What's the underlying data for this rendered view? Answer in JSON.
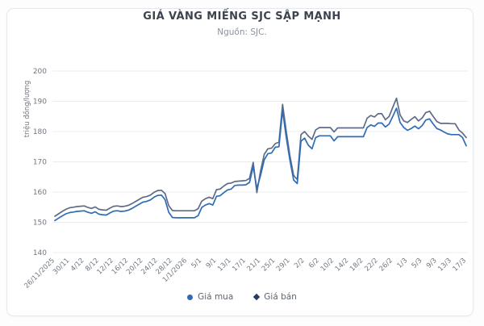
{
  "title": "GIÁ VÀNG MIẾNG SJC SẬP MẠNH",
  "subtitle": "Nguồn: SJC.",
  "colors": {
    "buy_line": "#2e6cb5",
    "sell_line": "#5f6c87",
    "sell_marker": "#2c3c5e",
    "grid": "#e9ecef",
    "axis_text": "#6f7680"
  },
  "chart_data": {
    "type": "line",
    "title": "GIÁ VÀNG MIẾNG SJC SẬP MẠNH",
    "subtitle": "Nguồn: SJC.",
    "xlabel": "",
    "ylabel": "triệu đồng/lượng",
    "ylim": [
      140,
      200
    ],
    "yticks": [
      140,
      150,
      160,
      170,
      180,
      190,
      200
    ],
    "grid": true,
    "legend_position": "bottom",
    "tick_interval": 4,
    "tick_labels": [
      "26/11/2025",
      "30/11",
      "4/12",
      "8/12",
      "12/12",
      "16/12",
      "20/12",
      "24/12",
      "28/12",
      "1/1/2026",
      "5/1",
      "9/1",
      "13/1",
      "17/1",
      "21/1",
      "25/1",
      "29/1",
      "2/2",
      "6/2",
      "10/2",
      "14/2",
      "18/2",
      "22/2",
      "26/2",
      "1/3",
      "5/3",
      "9/3",
      "13/3",
      "17/3"
    ],
    "series": [
      {
        "name": "Giá mua",
        "color": "#2e6cb5",
        "marker": "circle",
        "values": [
          150.6,
          151.4,
          152.1,
          152.8,
          153.2,
          153.4,
          153.6,
          153.7,
          153.8,
          153.3,
          153.0,
          153.5,
          152.7,
          152.5,
          152.4,
          153.1,
          153.7,
          153.8,
          153.6,
          153.7,
          154.0,
          154.6,
          155.3,
          156.0,
          156.7,
          156.9,
          157.4,
          158.3,
          158.9,
          159.0,
          157.5,
          153.3,
          151.6,
          151.5,
          151.5,
          151.5,
          151.5,
          151.5,
          151.5,
          152.2,
          154.9,
          155.7,
          156.2,
          155.7,
          158.6,
          158.8,
          159.8,
          160.7,
          161.0,
          162.2,
          162.3,
          162.3,
          162.4,
          163.2,
          168.4,
          161.2,
          165.5,
          170.7,
          172.7,
          172.9,
          174.8,
          175.0,
          187.0,
          178.0,
          170.5,
          164.0,
          162.8,
          176.8,
          177.8,
          175.5,
          174.3,
          178.0,
          178.6,
          178.6,
          178.6,
          178.6,
          176.9,
          178.3,
          178.3,
          178.3,
          178.3,
          178.3,
          178.3,
          178.3,
          178.3,
          181.3,
          182.2,
          181.7,
          182.8,
          182.8,
          181.5,
          182.5,
          185.0,
          187.7,
          183.0,
          181.3,
          180.4,
          181.0,
          181.8,
          180.9,
          182.0,
          183.8,
          184.2,
          182.5,
          181.0,
          180.5,
          179.8,
          179.2,
          179.0,
          179.0,
          179.0,
          178.0,
          175.3
        ]
      },
      {
        "name": "Giá bán",
        "color": "#5f6c87",
        "marker": "diamond",
        "values": [
          152.0,
          152.8,
          153.6,
          154.3,
          154.8,
          155.0,
          155.2,
          155.3,
          155.4,
          154.9,
          154.6,
          155.1,
          154.3,
          154.1,
          154.0,
          154.7,
          155.3,
          155.4,
          155.2,
          155.3,
          155.6,
          156.2,
          156.9,
          157.6,
          158.3,
          158.5,
          159.0,
          159.9,
          160.5,
          160.6,
          159.5,
          155.5,
          153.9,
          153.8,
          153.8,
          153.8,
          153.8,
          153.8,
          153.8,
          154.5,
          157.0,
          157.8,
          158.3,
          157.8,
          160.8,
          161.0,
          162.0,
          162.8,
          163.0,
          163.5,
          163.6,
          163.7,
          163.8,
          164.5,
          169.8,
          159.8,
          167.0,
          172.5,
          174.3,
          174.5,
          176.0,
          176.5,
          189.0,
          180.0,
          172.0,
          165.5,
          164.1,
          179.0,
          180.0,
          178.5,
          177.4,
          180.5,
          181.3,
          181.3,
          181.3,
          181.3,
          179.9,
          181.2,
          181.2,
          181.2,
          181.2,
          181.2,
          181.2,
          181.2,
          181.2,
          184.4,
          185.3,
          184.8,
          185.9,
          185.9,
          183.9,
          185.0,
          188.0,
          191.0,
          185.5,
          183.5,
          183.0,
          184.0,
          184.9,
          183.5,
          184.5,
          186.3,
          186.7,
          185.0,
          183.3,
          182.7,
          182.7,
          182.7,
          182.6,
          182.6,
          180.5,
          179.5,
          178.0
        ]
      }
    ]
  }
}
